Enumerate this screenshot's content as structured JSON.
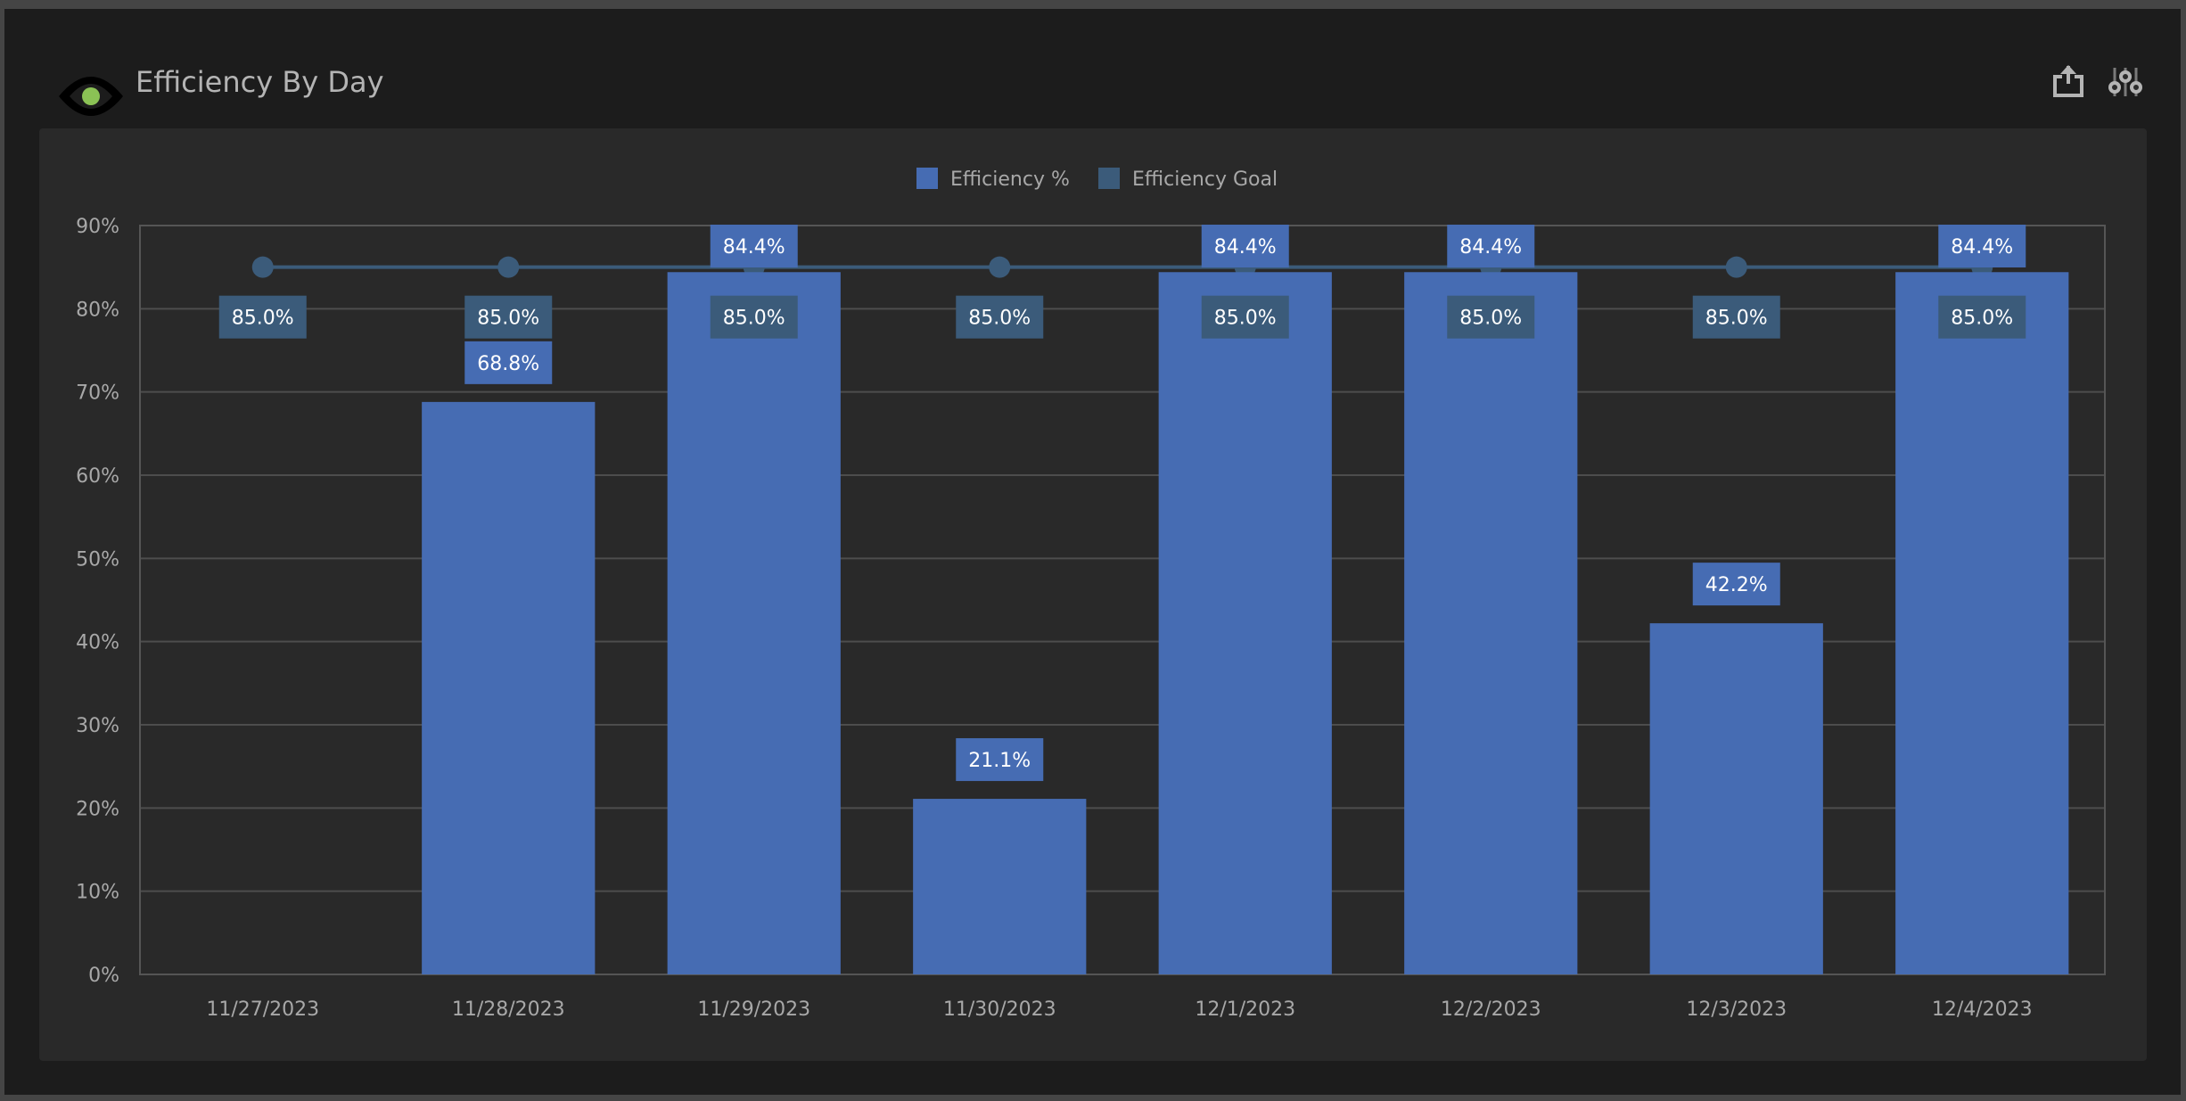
{
  "header": {
    "title": "Efficiency By Day",
    "logo_icon": "eye-icon",
    "actions": [
      {
        "icon": "share-export-icon"
      },
      {
        "icon": "sliders-settings-icon"
      }
    ]
  },
  "colors": {
    "efficiency": "#466cb3",
    "goal": "#3b5b7a",
    "logo_pupil": "#8bc255"
  },
  "chart_data": {
    "type": "bar",
    "categories": [
      "11/27/2023",
      "11/28/2023",
      "11/29/2023",
      "11/30/2023",
      "12/1/2023",
      "12/2/2023",
      "12/3/2023",
      "12/4/2023"
    ],
    "series": [
      {
        "name": "Efficiency %",
        "type": "bar",
        "values": [
          null,
          68.8,
          84.4,
          21.1,
          84.4,
          84.4,
          42.2,
          84.4
        ],
        "labels": [
          "",
          "68.8%",
          "84.4%",
          "21.1%",
          "84.4%",
          "84.4%",
          "42.2%",
          "84.4%"
        ]
      },
      {
        "name": "Efficiency Goal",
        "type": "line",
        "values": [
          85.0,
          85.0,
          85.0,
          85.0,
          85.0,
          85.0,
          85.0,
          85.0
        ],
        "labels": [
          "85.0%",
          "85.0%",
          "85.0%",
          "85.0%",
          "85.0%",
          "85.0%",
          "85.0%",
          "85.0%"
        ]
      }
    ],
    "yticks": [
      "0%",
      "10%",
      "20%",
      "30%",
      "40%",
      "50%",
      "60%",
      "70%",
      "80%",
      "90%"
    ],
    "ylim": [
      0,
      90
    ],
    "legend": "top-center",
    "grid": true,
    "xlabel": "",
    "ylabel": ""
  }
}
